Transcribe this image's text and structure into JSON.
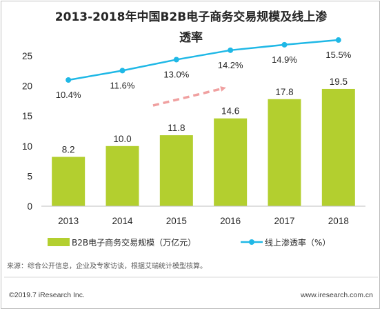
{
  "chart_data": {
    "type": "bar",
    "title_line1": "2013-2018年中国B2B电子商务交易规模及线上渗",
    "title_line2": "透率",
    "categories": [
      "2013",
      "2014",
      "2015",
      "2016",
      "2017",
      "2018"
    ],
    "series": [
      {
        "name": "B2B电子商务交易规模（万亿元）",
        "type": "bar",
        "axis": "left",
        "values": [
          8.2,
          10.0,
          11.8,
          14.6,
          17.8,
          19.5
        ],
        "labels": [
          "8.2",
          "10.0",
          "11.8",
          "14.6",
          "17.8",
          "19.5"
        ]
      },
      {
        "name": "线上渗透率（%）",
        "type": "line",
        "axis": "right",
        "values": [
          10.4,
          11.6,
          13.0,
          14.2,
          14.9,
          15.5
        ],
        "labels": [
          "10.4%",
          "11.6%",
          "13.0%",
          "14.2%",
          "14.9%",
          "15.5%"
        ]
      }
    ],
    "ylim": [
      0,
      25
    ],
    "yticks": [
      0,
      5,
      10,
      15,
      20,
      25
    ],
    "grid": false,
    "legend": "bottom",
    "trend_arrow": "dashed, upward"
  },
  "colors": {
    "bar": "#b3cf2f",
    "line": "#1fb8e6",
    "arrow": "#f0a0a0",
    "axis": "#bfbfbf",
    "text": "#262626"
  },
  "source": "来源：综合公开信息，企业及专家访谈，根据艾瑞统计模型核算。",
  "footer": {
    "copyright": "©2019.7 iResearch Inc.",
    "website": "www.iresearch.com.cn"
  }
}
